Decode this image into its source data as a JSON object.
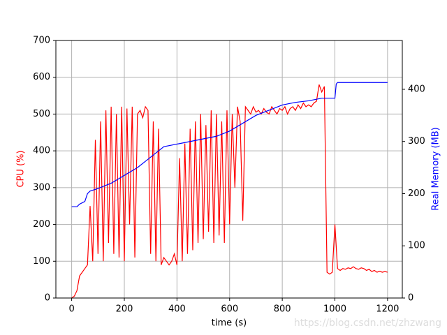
{
  "chart_data": {
    "type": "line",
    "xlabel": "time (s)",
    "ylabel": "CPU (%)",
    "y2label": "Real Memory (MB)",
    "watermark": "https://blog.csdn.net/zhzwang",
    "xlim": [
      -60,
      1256
    ],
    "xticks": [
      0,
      200,
      400,
      600,
      800,
      1000,
      1200
    ],
    "ylim": [
      0,
      700
    ],
    "yticks": [
      0,
      100,
      200,
      300,
      400,
      500,
      600,
      700
    ],
    "y2lim": [
      0,
      493.6
    ],
    "y2ticks": [
      0,
      100,
      200,
      300,
      400
    ],
    "grid": true,
    "series": [
      {
        "name": "CPU (%)",
        "color": "#ff0000",
        "x": [
          0,
          10,
          20,
          30,
          40,
          50,
          60,
          70,
          80,
          90,
          100,
          110,
          120,
          130,
          140,
          150,
          160,
          170,
          180,
          190,
          200,
          210,
          220,
          230,
          240,
          250,
          260,
          270,
          280,
          290,
          300,
          310,
          320,
          330,
          340,
          350,
          360,
          370,
          380,
          390,
          400,
          410,
          420,
          430,
          440,
          450,
          460,
          470,
          480,
          490,
          500,
          510,
          520,
          530,
          540,
          550,
          560,
          570,
          580,
          590,
          600,
          610,
          620,
          630,
          640,
          650,
          660,
          670,
          680,
          690,
          700,
          710,
          720,
          730,
          740,
          750,
          760,
          770,
          780,
          790,
          800,
          810,
          820,
          830,
          840,
          850,
          860,
          870,
          880,
          890,
          900,
          910,
          920,
          930,
          940,
          950,
          960,
          970,
          980,
          990,
          1000,
          1010,
          1020,
          1030,
          1040,
          1050,
          1060,
          1070,
          1080,
          1090,
          1100,
          1110,
          1120,
          1130,
          1140,
          1150,
          1160,
          1170,
          1180,
          1190,
          1200
        ],
        "values": [
          0,
          5,
          20,
          60,
          70,
          80,
          90,
          250,
          100,
          430,
          120,
          480,
          100,
          510,
          150,
          520,
          120,
          500,
          110,
          520,
          100,
          515,
          200,
          520,
          110,
          500,
          510,
          490,
          520,
          510,
          120,
          480,
          100,
          460,
          90,
          110,
          100,
          90,
          100,
          120,
          90,
          380,
          100,
          420,
          120,
          460,
          130,
          480,
          150,
          500,
          160,
          470,
          180,
          510,
          150,
          500,
          170,
          480,
          150,
          510,
          200,
          500,
          300,
          520,
          480,
          210,
          520,
          510,
          500,
          520,
          505,
          510,
          500,
          515,
          505,
          500,
          520,
          510,
          500,
          515,
          510,
          520,
          500,
          515,
          520,
          510,
          525,
          515,
          530,
          520,
          525,
          520,
          530,
          535,
          580,
          560,
          575,
          70,
          65,
          70,
          200,
          80,
          75,
          80,
          78,
          82,
          80,
          85,
          80,
          78,
          82,
          80,
          75,
          78,
          72,
          75,
          70,
          73,
          70,
          72,
          70
        ]
      },
      {
        "name": "Real Memory (MB)",
        "color": "#0000ff",
        "axis": "y2",
        "x": [
          0,
          20,
          30,
          50,
          60,
          70,
          100,
          150,
          200,
          250,
          300,
          350,
          400,
          450,
          500,
          550,
          600,
          650,
          700,
          750,
          800,
          850,
          900,
          950,
          1000,
          1005,
          1010,
          1200
        ],
        "values": [
          175,
          175,
          180,
          185,
          200,
          205,
          210,
          220,
          235,
          250,
          270,
          290,
          295,
          300,
          305,
          310,
          320,
          335,
          350,
          360,
          370,
          375,
          378,
          383,
          383,
          410,
          413,
          413
        ]
      }
    ]
  }
}
